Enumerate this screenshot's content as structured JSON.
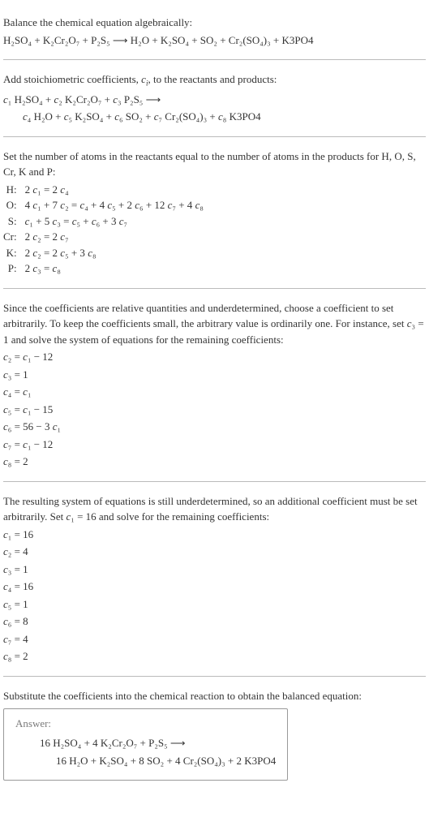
{
  "intro": {
    "l1": "Balance the chemical equation algebraically:",
    "eq": "H₂SO₄ + K₂Cr₂O₇ + P₂S₅  ⟶  H₂O + K₂SO₄ + SO₂ + Cr₂(SO₄)₃ + K3PO4"
  },
  "stoich": {
    "l1_a": "Add stoichiometric coefficients, ",
    "l1_ci": "c",
    "l1_i": "i",
    "l1_b": ", to the reactants and products:",
    "eq1_parts": [
      "c",
      "₁ H₂SO₄ + ",
      "c",
      "₂ K₂Cr₂O₇ + ",
      "c",
      "₃ P₂S₅  ⟶"
    ],
    "eq2_parts": [
      "c",
      "₄ H₂O + ",
      "c",
      "₅ K₂SO₄ + ",
      "c",
      "₆ SO₂ + ",
      "c",
      "₇ Cr₂(SO₄)₃ + ",
      "c",
      "₈ K3PO4"
    ]
  },
  "atoms": {
    "l1": "Set the number of atoms in the reactants equal to the number of atoms in the products for H, O, S, Cr, K and P:",
    "rows": [
      {
        "el": "H:",
        "eq_parts": [
          "2 ",
          "c",
          "₁ = 2 ",
          "c",
          "₄"
        ]
      },
      {
        "el": "O:",
        "eq_parts": [
          "4 ",
          "c",
          "₁ + 7 ",
          "c",
          "₂ = ",
          "c",
          "₄ + 4 ",
          "c",
          "₅ + 2 ",
          "c",
          "₆ + 12 ",
          "c",
          "₇ + 4 ",
          "c",
          "₈"
        ]
      },
      {
        "el": "S:",
        "eq_parts": [
          "",
          "c",
          "₁ + 5 ",
          "c",
          "₃ = ",
          "c",
          "₅ + ",
          "c",
          "₆ + 3 ",
          "c",
          "₇"
        ]
      },
      {
        "el": "Cr:",
        "eq_parts": [
          "2 ",
          "c",
          "₂ = 2 ",
          "c",
          "₇"
        ]
      },
      {
        "el": "K:",
        "eq_parts": [
          "2 ",
          "c",
          "₂ = 2 ",
          "c",
          "₅ + 3 ",
          "c",
          "₈"
        ]
      },
      {
        "el": "P:",
        "eq_parts": [
          "2 ",
          "c",
          "₃ = ",
          "c",
          "₈"
        ]
      }
    ]
  },
  "undet1": {
    "text_parts": [
      "Since the coefficients are relative quantities and underdetermined, choose a coefficient to set arbitrarily. To keep the coefficients small, the arbitrary value is ordinarily one. For instance, set ",
      "c",
      "₃ = 1 and solve the system of equations for the remaining coefficients:"
    ],
    "rows": [
      [
        "c",
        "₂ = ",
        "c",
        "₁ − 12"
      ],
      [
        "c",
        "₃ = 1"
      ],
      [
        "c",
        "₄ = ",
        "c",
        "₁"
      ],
      [
        "c",
        "₅ = ",
        "c",
        "₁ − 15"
      ],
      [
        "c",
        "₆ = 56 − 3 ",
        "c",
        "₁"
      ],
      [
        "c",
        "₇ = ",
        "c",
        "₁ − 12"
      ],
      [
        "c",
        "₈ = 2"
      ]
    ]
  },
  "undet2": {
    "text_parts": [
      "The resulting system of equations is still underdetermined, so an additional coefficient must be set arbitrarily. Set ",
      "c",
      "₁ = 16 and solve for the remaining coefficients:"
    ],
    "rows": [
      [
        "c",
        "₁ = 16"
      ],
      [
        "c",
        "₂ = 4"
      ],
      [
        "c",
        "₃ = 1"
      ],
      [
        "c",
        "₄ = 16"
      ],
      [
        "c",
        "₅ = 1"
      ],
      [
        "c",
        "₆ = 8"
      ],
      [
        "c",
        "₇ = 4"
      ],
      [
        "c",
        "₈ = 2"
      ]
    ]
  },
  "final": {
    "l1": "Substitute the coefficients into the chemical reaction to obtain the balanced equation:",
    "answer_label": "Answer:",
    "eq1": "16 H₂SO₄ + 4 K₂Cr₂O₇ + P₂S₅  ⟶",
    "eq2": "16 H₂O + K₂SO₄ + 8 SO₂ + 4 Cr₂(SO₄)₃ + 2 K3PO4"
  }
}
